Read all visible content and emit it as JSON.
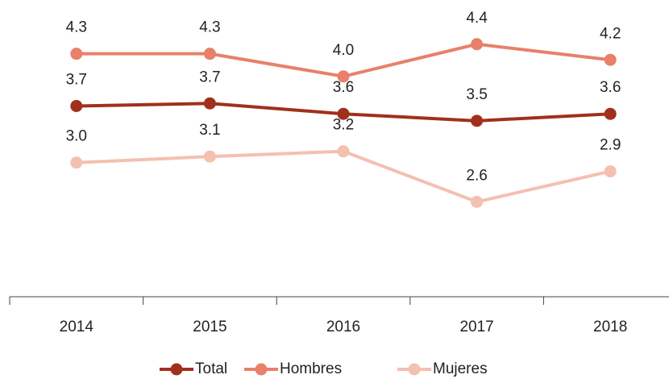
{
  "chart_data": {
    "type": "line",
    "categories": [
      "2014",
      "2015",
      "2016",
      "2017",
      "2018"
    ],
    "series": [
      {
        "name": "Total",
        "color": "#a0301c",
        "values": [
          3.69,
          3.72,
          3.6,
          3.52,
          3.6
        ],
        "value_labels": [
          "3.7",
          "3.7",
          "3.6",
          "3.5",
          "3.6"
        ]
      },
      {
        "name": "Hombres",
        "color": "#e8806a",
        "values": [
          4.29,
          4.29,
          4.03,
          4.4,
          4.22
        ],
        "value_labels": [
          "4.3",
          "4.3",
          "4.0",
          "4.4",
          "4.2"
        ]
      },
      {
        "name": "Mujeres",
        "color": "#f4c0b0",
        "values": [
          3.04,
          3.11,
          3.17,
          2.59,
          2.94
        ],
        "value_labels": [
          "3.0",
          "3.1",
          "3.2",
          "2.6",
          "2.9"
        ]
      }
    ],
    "ylim": [
      1.5,
      4.75
    ],
    "legend": "bottom"
  }
}
